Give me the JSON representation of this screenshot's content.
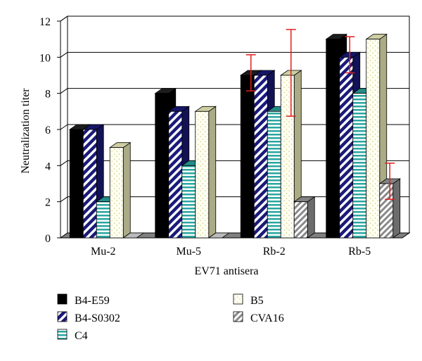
{
  "chart_data": {
    "type": "bar",
    "title": "",
    "xlabel": "EV71 antisera",
    "ylabel": "Neutralization titer",
    "ylim": [
      0,
      12
    ],
    "yticks": [
      0,
      2,
      4,
      6,
      8,
      10,
      12
    ],
    "grid": true,
    "legend_position": "bottom",
    "categories": [
      "Mu-2",
      "Mu-5",
      "Rb-2",
      "Rb-5"
    ],
    "series": [
      {
        "name": "B4-E59",
        "values": [
          6,
          8,
          9,
          11
        ],
        "errors": [
          null,
          null,
          1,
          null
        ],
        "pattern": "solid-black"
      },
      {
        "name": "B4-S0302",
        "values": [
          6,
          7,
          9,
          10
        ],
        "errors": [
          null,
          null,
          null,
          1
        ],
        "pattern": "navy-diagonal"
      },
      {
        "name": "C4",
        "values": [
          2,
          4,
          7,
          8
        ],
        "errors": [
          null,
          null,
          null,
          null
        ],
        "pattern": "teal-horizontal"
      },
      {
        "name": "B5",
        "values": [
          5,
          7,
          9,
          11
        ],
        "errors": [
          null,
          null,
          2.4,
          null
        ],
        "pattern": "yellow-dots"
      },
      {
        "name": "CVA16",
        "values": [
          0,
          0,
          2,
          3
        ],
        "errors": [
          null,
          null,
          null,
          1
        ],
        "pattern": "gray-diagonal"
      }
    ],
    "colors": {
      "error_bar": "#e02020",
      "grid": "#000000",
      "floor": "#808080"
    }
  }
}
